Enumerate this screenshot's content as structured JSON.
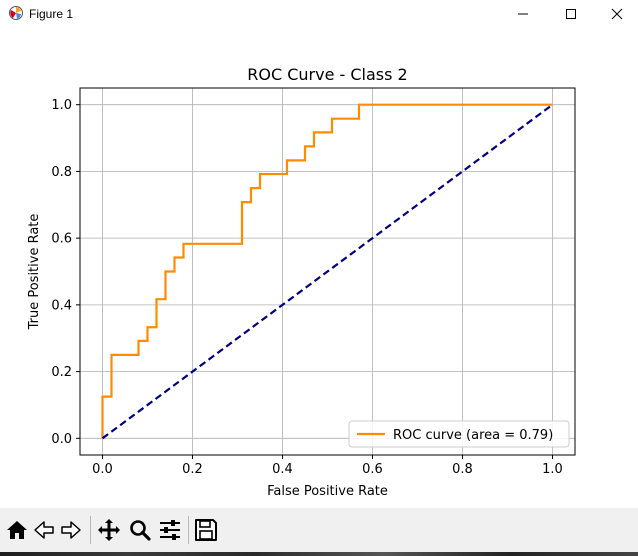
{
  "window": {
    "title": "Figure 1",
    "minimize_icon": "minimize-icon",
    "maximize_icon": "maximize-icon",
    "close_icon": "close-icon",
    "app_icon": "matplotlib-icon"
  },
  "toolbar": {
    "items": [
      "home-icon",
      "back-arrow-icon",
      "forward-arrow-icon",
      "pan-icon",
      "zoom-icon",
      "configure-subplots-icon",
      "save-icon"
    ]
  },
  "chart_data": {
    "type": "line",
    "title": "ROC Curve - Class 2",
    "xlabel": "False Positive Rate",
    "ylabel": "True Positive Rate",
    "xlim": [
      -0.05,
      1.05
    ],
    "ylim": [
      -0.05,
      1.05
    ],
    "xticks": [
      0.0,
      0.2,
      0.4,
      0.6,
      0.8,
      1.0
    ],
    "yticks": [
      0.0,
      0.2,
      0.4,
      0.6,
      0.8,
      1.0
    ],
    "xtick_labels": [
      "0.0",
      "0.2",
      "0.4",
      "0.6",
      "0.8",
      "1.0"
    ],
    "ytick_labels": [
      "0.0",
      "0.2",
      "0.4",
      "0.6",
      "0.8",
      "1.0"
    ],
    "grid": true,
    "legend_position": "lower right",
    "series": [
      {
        "name": "ROC curve (area = 0.79)",
        "color": "#ff8c00",
        "style": "solid",
        "x": [
          0.0,
          0.0,
          0.02,
          0.02,
          0.08,
          0.08,
          0.1,
          0.1,
          0.12,
          0.12,
          0.14,
          0.14,
          0.16,
          0.16,
          0.18,
          0.18,
          0.31,
          0.31,
          0.33,
          0.33,
          0.35,
          0.35,
          0.41,
          0.41,
          0.45,
          0.45,
          0.47,
          0.47,
          0.51,
          0.51,
          0.57,
          0.57,
          1.0
        ],
        "y": [
          0.0,
          0.125,
          0.125,
          0.25,
          0.25,
          0.292,
          0.292,
          0.333,
          0.333,
          0.417,
          0.417,
          0.5,
          0.5,
          0.542,
          0.542,
          0.583,
          0.583,
          0.708,
          0.708,
          0.75,
          0.75,
          0.792,
          0.792,
          0.833,
          0.833,
          0.875,
          0.875,
          0.917,
          0.917,
          0.958,
          0.958,
          1.0,
          1.0
        ]
      },
      {
        "name": "",
        "color": "#000080",
        "style": "dashed",
        "x": [
          0.0,
          1.0
        ],
        "y": [
          0.0,
          1.0
        ]
      }
    ]
  }
}
